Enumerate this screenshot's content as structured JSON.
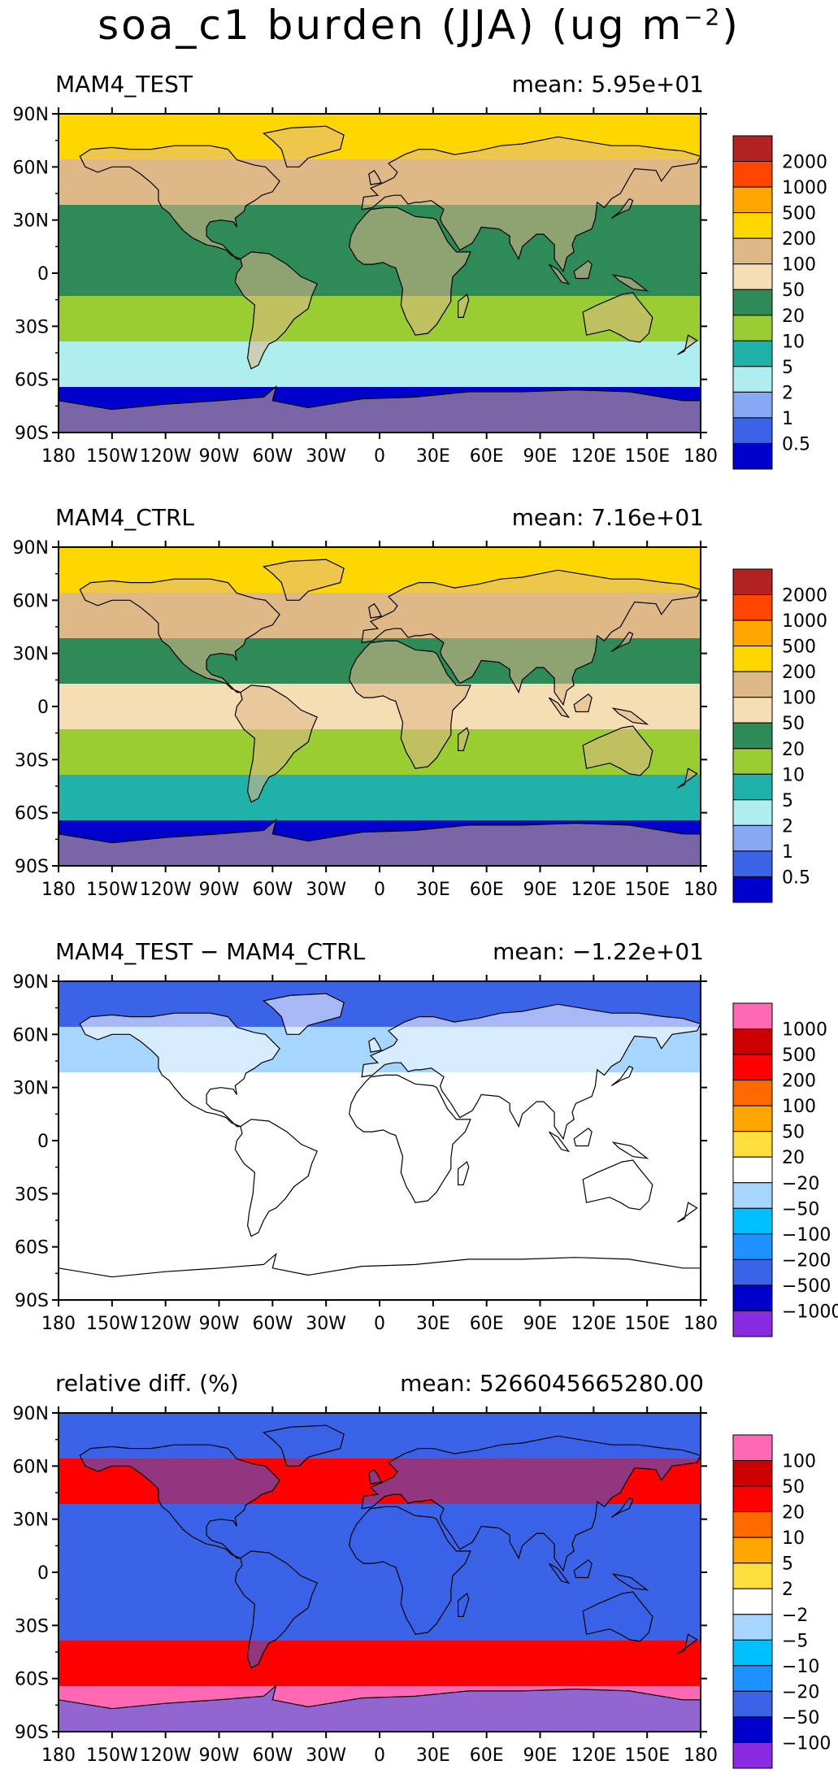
{
  "title": {
    "prefix": "soa_c1 burden (JJA) (ug m",
    "exponent": "−2",
    "suffix": ")"
  },
  "lat_labels": [
    "90N",
    "60N",
    "30N",
    "0",
    "30S",
    "60S",
    "90S"
  ],
  "lon_labels": [
    "180",
    "150W",
    "120W",
    "90W",
    "60W",
    "30W",
    "0",
    "30E",
    "60E",
    "90E",
    "120E",
    "150E",
    "180"
  ],
  "panels": [
    {
      "name": "MAM4_TEST",
      "mean_text": "mean: 5.95e+01",
      "colorbar": {
        "colors": [
          "#b22222",
          "#ff4500",
          "#ffa500",
          "#ffd700",
          "#deb887",
          "#f5deb3",
          "#2e8b57",
          "#9acd32",
          "#20b2aa",
          "#afeeee",
          "#87a8f5",
          "#3a63e8",
          "#0000cd"
        ],
        "labels": [
          "2000",
          "1000",
          "500",
          "200",
          "100",
          "50",
          "20",
          "10",
          "5",
          "2",
          "1",
          "0.5"
        ]
      },
      "fill_by_lat": [
        "#ffd700",
        "#deb887",
        "#2e8b57",
        "#2e8b57",
        "#9acd32",
        "#afeeee",
        "#0000cd"
      ],
      "continent_fill": "#deb887"
    },
    {
      "name": "MAM4_CTRL",
      "mean_text": "mean: 7.16e+01",
      "colorbar": {
        "colors": [
          "#b22222",
          "#ff4500",
          "#ffa500",
          "#ffd700",
          "#deb887",
          "#f5deb3",
          "#2e8b57",
          "#9acd32",
          "#20b2aa",
          "#afeeee",
          "#87a8f5",
          "#3a63e8",
          "#0000cd"
        ],
        "labels": [
          "2000",
          "1000",
          "500",
          "200",
          "100",
          "50",
          "20",
          "10",
          "5",
          "2",
          "1",
          "0.5"
        ]
      },
      "fill_by_lat": [
        "#ffd700",
        "#deb887",
        "#2e8b57",
        "#f5deb3",
        "#9acd32",
        "#20b2aa",
        "#0000cd"
      ],
      "continent_fill": "#deb887"
    },
    {
      "name": "MAM4_TEST − MAM4_CTRL",
      "mean_text": "mean: −1.22e+01",
      "colorbar": {
        "colors": [
          "#ff69b4",
          "#cd0000",
          "#ff0000",
          "#ff6a00",
          "#ffa500",
          "#ffde3b",
          "#ffffff",
          "#a6d5ff",
          "#00bfff",
          "#1e90ff",
          "#3a63e8",
          "#0000cd",
          "#8a2be2"
        ],
        "labels": [
          "1000",
          "500",
          "200",
          "100",
          "50",
          "20",
          "−20",
          "−50",
          "−100",
          "−200",
          "−500",
          "−1000"
        ]
      },
      "fill_by_lat": [
        "#3a63e8",
        "#a6d5ff",
        "#ffffff",
        "#ffffff",
        "#ffffff",
        "#ffffff",
        "#ffffff"
      ],
      "continent_fill": "#ffffff"
    },
    {
      "name": "relative diff. (%)",
      "mean_text": "mean: 5266045665280.00",
      "colorbar": {
        "colors": [
          "#ff69b4",
          "#cd0000",
          "#ff0000",
          "#ff6a00",
          "#ffa500",
          "#ffde3b",
          "#ffffff",
          "#a6d5ff",
          "#00bfff",
          "#1e90ff",
          "#3a63e8",
          "#0000cd",
          "#8a2be2"
        ],
        "labels": [
          "100",
          "50",
          "20",
          "10",
          "5",
          "2",
          "−2",
          "−5",
          "−10",
          "−20",
          "−50",
          "−100"
        ]
      },
      "fill_by_lat": [
        "#3a63e8",
        "#ff0000",
        "#3a63e8",
        "#3a63e8",
        "#3a63e8",
        "#ff0000",
        "#ff69b4"
      ],
      "continent_fill": "#3a63e8"
    }
  ]
}
